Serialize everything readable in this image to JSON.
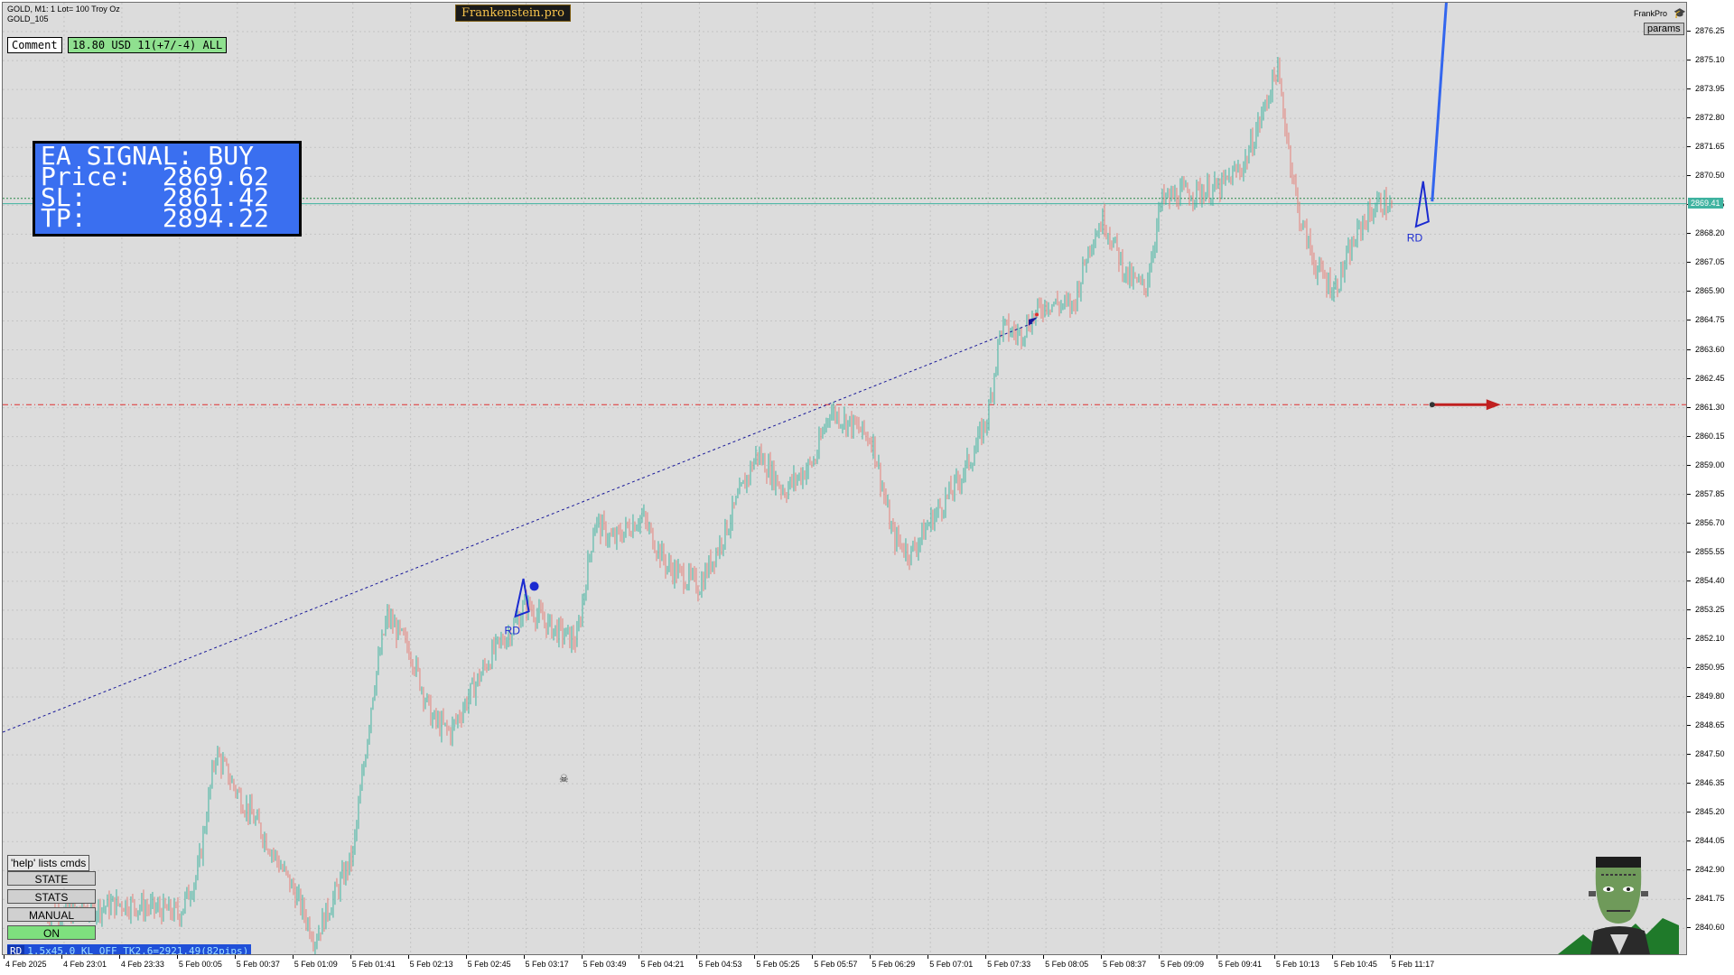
{
  "header": {
    "symbol_line": "GOLD, M1:  1 Lot= 100 Troy Oz",
    "template_line": "GOLD_105",
    "brand": "Frankenstein.pro",
    "account": "FrankPro",
    "params_label": "params"
  },
  "comment": {
    "label": "Comment",
    "value": "18.80 USD 11(+7/-4) ALL"
  },
  "signal": {
    "line1": "EA SIGNAL: BUY",
    "line2": "Price:  2869.62",
    "line3": "SL:     2861.42",
    "line4": "TP:     2894.22"
  },
  "price_axis": {
    "labels": [
      "2876.25",
      "2875.10",
      "2873.95",
      "2872.80",
      "2871.65",
      "2870.50",
      "2869.35",
      "2868.20",
      "2867.05",
      "2865.90",
      "2864.75",
      "2863.60",
      "2862.45",
      "2861.30",
      "2860.15",
      "2859.00",
      "2857.85",
      "2856.70",
      "2855.55",
      "2854.40",
      "2853.25",
      "2852.10",
      "2850.95",
      "2849.80",
      "2848.65",
      "2847.50",
      "2846.35",
      "2845.20",
      "2844.05",
      "2842.90",
      "2841.75",
      "2840.60"
    ],
    "current_price": "2869.41"
  },
  "time_axis": {
    "labels": [
      "4 Feb 2025",
      "4 Feb 23:01",
      "4 Feb 23:33",
      "5 Feb 00:05",
      "5 Feb 00:37",
      "5 Feb 01:09",
      "5 Feb 01:41",
      "5 Feb 02:13",
      "5 Feb 02:45",
      "5 Feb 03:17",
      "5 Feb 03:49",
      "5 Feb 04:21",
      "5 Feb 04:53",
      "5 Feb 05:25",
      "5 Feb 05:57",
      "5 Feb 06:29",
      "5 Feb 07:01",
      "5 Feb 07:33",
      "5 Feb 08:05",
      "5 Feb 08:37",
      "5 Feb 09:09",
      "5 Feb 09:41",
      "5 Feb 10:13",
      "5 Feb 10:45",
      "5 Feb 11:17"
    ]
  },
  "annotations": {
    "pattern_label_1": "RD",
    "pattern_label_2": "RD"
  },
  "controls": {
    "help": "'help' lists cmds",
    "state": "STATE",
    "stats": "STATS",
    "manual": "MANUAL",
    "on": "ON"
  },
  "status": {
    "tag": "RD",
    "text": "1.5x45.0 KL_OFF TK2.6=2921.49(82pips)"
  },
  "chart_data": {
    "type": "candlestick",
    "ylim": [
      2839.5,
      2877.4
    ],
    "close_path": [
      [
        "4 Feb 23:01",
        2841.2
      ],
      [
        "4 Feb 23:33",
        2841.6
      ],
      [
        "5 Feb 00:05",
        2841.2
      ],
      [
        "5 Feb 00:15",
        2842.8
      ],
      [
        "5 Feb 00:25",
        2847.6
      ],
      [
        "5 Feb 00:37",
        2846.0
      ],
      [
        "5 Feb 00:50",
        2844.5
      ],
      [
        "5 Feb 01:00",
        2843.2
      ],
      [
        "5 Feb 01:09",
        2842.0
      ],
      [
        "5 Feb 01:20",
        2840.2
      ],
      [
        "5 Feb 01:41",
        2843.5
      ],
      [
        "5 Feb 01:52",
        2850.0
      ],
      [
        "5 Feb 02:00",
        2853.0
      ],
      [
        "5 Feb 02:13",
        2851.6
      ],
      [
        "5 Feb 02:25",
        2848.9
      ],
      [
        "5 Feb 02:35",
        2848.4
      ],
      [
        "5 Feb 02:45",
        2849.8
      ],
      [
        "5 Feb 02:58",
        2851.5
      ],
      [
        "5 Feb 03:10",
        2852.6
      ],
      [
        "5 Feb 03:17",
        2853.5
      ],
      [
        "5 Feb 03:30",
        2852.6
      ],
      [
        "5 Feb 03:45",
        2852.0
      ],
      [
        "5 Feb 03:55",
        2856.8
      ],
      [
        "5 Feb 04:05",
        2856.0
      ],
      [
        "5 Feb 04:21",
        2857.0
      ],
      [
        "5 Feb 04:35",
        2855.0
      ],
      [
        "5 Feb 04:53",
        2854.2
      ],
      [
        "5 Feb 05:05",
        2856.0
      ],
      [
        "5 Feb 05:25",
        2859.5
      ],
      [
        "5 Feb 05:40",
        2858.0
      ],
      [
        "5 Feb 05:57",
        2859.2
      ],
      [
        "5 Feb 06:05",
        2861.2
      ],
      [
        "5 Feb 06:20",
        2860.5
      ],
      [
        "5 Feb 06:29",
        2860.0
      ],
      [
        "5 Feb 06:40",
        2856.2
      ],
      [
        "5 Feb 06:50",
        2855.5
      ],
      [
        "5 Feb 07:01",
        2856.8
      ],
      [
        "5 Feb 07:15",
        2858.2
      ],
      [
        "5 Feb 07:25",
        2859.5
      ],
      [
        "5 Feb 07:33",
        2861.0
      ],
      [
        "5 Feb 07:40",
        2864.5
      ],
      [
        "5 Feb 07:50",
        2864.2
      ],
      [
        "5 Feb 08:05",
        2865.5
      ],
      [
        "5 Feb 08:20",
        2865.3
      ],
      [
        "5 Feb 08:30",
        2868.0
      ],
      [
        "5 Feb 08:37",
        2868.8
      ],
      [
        "5 Feb 08:50",
        2866.5
      ],
      [
        "5 Feb 09:00",
        2866.0
      ],
      [
        "5 Feb 09:09",
        2869.5
      ],
      [
        "5 Feb 09:20",
        2869.8
      ],
      [
        "5 Feb 09:41",
        2870.0
      ],
      [
        "5 Feb 09:55",
        2871.0
      ],
      [
        "5 Feb 10:05",
        2873.0
      ],
      [
        "5 Feb 10:13",
        2874.8
      ],
      [
        "5 Feb 10:25",
        2869.0
      ],
      [
        "5 Feb 10:35",
        2866.8
      ],
      [
        "5 Feb 10:45",
        2866.0
      ],
      [
        "5 Feb 11:00",
        2868.6
      ],
      [
        "5 Feb 11:10",
        2869.5
      ],
      [
        "5 Feb 11:17",
        2869.2
      ]
    ],
    "levels": {
      "current_bid": 2869.41,
      "ask_dotted": 2869.62,
      "stop_loss_dashed": 2861.42
    },
    "colors": {
      "bull": "#3fb3a0",
      "bear": "#e4807a",
      "trendline": "#1a1a9a",
      "sl_line": "#e03030",
      "tp_ray": "#3366ee",
      "pattern": "#1a2ad0"
    }
  }
}
